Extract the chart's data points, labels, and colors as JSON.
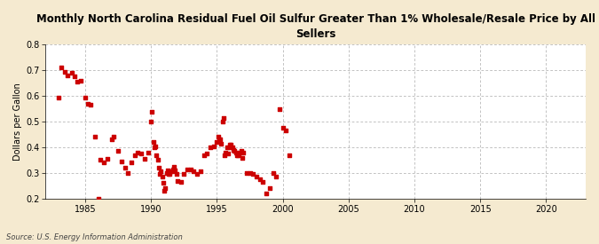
{
  "title": "Monthly North Carolina Residual Fuel Oil Sulfur Greater Than 1% Wholesale/Resale Price by All\nSellers",
  "ylabel": "Dollars per Gallon",
  "source": "Source: U.S. Energy Information Administration",
  "background_color": "#f5ead0",
  "plot_bg_color": "#ffffff",
  "marker_color": "#cc0000",
  "xlim": [
    1982,
    2023
  ],
  "ylim": [
    0.2,
    0.8
  ],
  "xticks": [
    1985,
    1990,
    1995,
    2000,
    2005,
    2010,
    2015,
    2020
  ],
  "yticks": [
    0.2,
    0.3,
    0.4,
    0.5,
    0.6,
    0.7,
    0.8
  ],
  "data_x": [
    1983.0,
    1983.17,
    1983.42,
    1983.67,
    1984.0,
    1984.17,
    1984.42,
    1984.67,
    1985.0,
    1985.17,
    1985.42,
    1985.75,
    1986.0,
    1986.17,
    1986.42,
    1986.67,
    1987.0,
    1987.17,
    1987.5,
    1987.75,
    1988.0,
    1988.25,
    1988.5,
    1988.75,
    1989.0,
    1989.25,
    1989.5,
    1989.75,
    1990.0,
    1990.08,
    1990.17,
    1990.25,
    1990.33,
    1990.42,
    1990.5,
    1990.58,
    1990.67,
    1990.75,
    1990.83,
    1990.92,
    1991.0,
    1991.08,
    1991.17,
    1991.25,
    1991.33,
    1991.42,
    1991.5,
    1991.58,
    1991.67,
    1991.75,
    1991.83,
    1991.92,
    1992.0,
    1992.25,
    1992.5,
    1992.75,
    1993.0,
    1993.25,
    1993.5,
    1993.75,
    1994.0,
    1994.25,
    1994.5,
    1994.75,
    1995.0,
    1995.08,
    1995.17,
    1995.25,
    1995.33,
    1995.42,
    1995.5,
    1995.58,
    1995.67,
    1995.75,
    1995.83,
    1995.92,
    1996.0,
    1996.08,
    1996.17,
    1996.25,
    1996.33,
    1996.42,
    1996.5,
    1996.58,
    1996.67,
    1996.75,
    1996.83,
    1996.92,
    1997.0,
    1997.25,
    1997.5,
    1997.75,
    1998.0,
    1998.25,
    1998.5,
    1998.75,
    1999.0,
    1999.25,
    1999.5,
    1999.75,
    2000.0,
    2000.25,
    2000.5
  ],
  "data_y": [
    0.595,
    0.71,
    0.695,
    0.68,
    0.69,
    0.675,
    0.655,
    0.66,
    0.595,
    0.57,
    0.565,
    0.44,
    0.2,
    0.35,
    0.34,
    0.355,
    0.43,
    0.44,
    0.385,
    0.345,
    0.32,
    0.3,
    0.34,
    0.37,
    0.38,
    0.375,
    0.355,
    0.38,
    0.5,
    0.54,
    0.42,
    0.4,
    0.405,
    0.37,
    0.35,
    0.32,
    0.295,
    0.305,
    0.285,
    0.26,
    0.23,
    0.24,
    0.3,
    0.31,
    0.295,
    0.295,
    0.305,
    0.305,
    0.315,
    0.325,
    0.31,
    0.295,
    0.27,
    0.265,
    0.295,
    0.315,
    0.315,
    0.305,
    0.295,
    0.305,
    0.37,
    0.375,
    0.4,
    0.405,
    0.42,
    0.44,
    0.43,
    0.43,
    0.415,
    0.5,
    0.515,
    0.37,
    0.38,
    0.4,
    0.375,
    0.4,
    0.41,
    0.41,
    0.4,
    0.39,
    0.385,
    0.38,
    0.37,
    0.37,
    0.375,
    0.38,
    0.385,
    0.36,
    0.38,
    0.3,
    0.3,
    0.295,
    0.285,
    0.275,
    0.265,
    0.22,
    0.24,
    0.3,
    0.285,
    0.55,
    0.475,
    0.465,
    0.37
  ]
}
